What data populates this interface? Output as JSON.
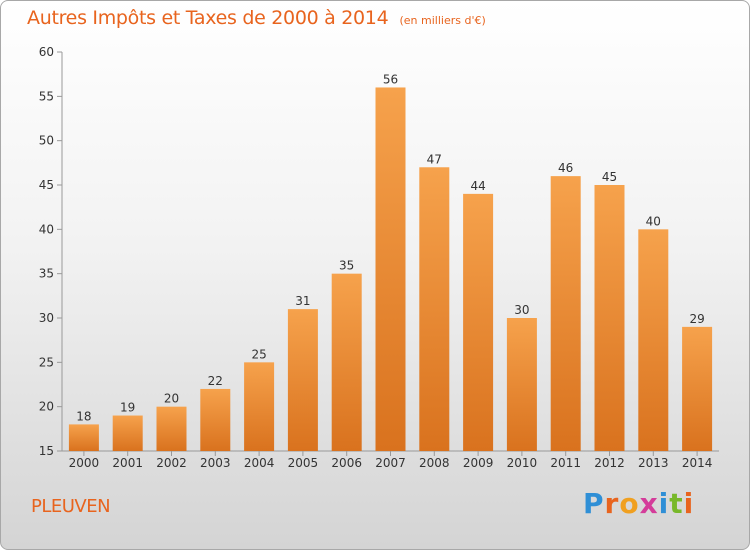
{
  "header": {
    "title": "Autres Impôts et Taxes de 2000 à 2014",
    "unit": "(en milliers d'€)"
  },
  "footer": {
    "commune": "PLEUVEN",
    "logo_letters": [
      "P",
      "r",
      "o",
      "x",
      "i",
      "t",
      "i"
    ],
    "logo_colors": [
      "#2f8fd6",
      "#e8641e",
      "#f0a020",
      "#d43c9a",
      "#2f8fd6",
      "#78b82a",
      "#e8641e"
    ]
  },
  "colors": {
    "bar_light": "#f6a24c",
    "bar_dark": "#d9721e",
    "text": "#333333",
    "title": "#e8641e"
  },
  "chart_data": {
    "type": "bar",
    "categories": [
      "2000",
      "2001",
      "2002",
      "2003",
      "2004",
      "2005",
      "2006",
      "2007",
      "2008",
      "2009",
      "2010",
      "2011",
      "2012",
      "2013",
      "2014"
    ],
    "values": [
      18,
      19,
      20,
      22,
      25,
      31,
      35,
      56,
      47,
      44,
      30,
      46,
      45,
      40,
      29
    ],
    "ylim": [
      15,
      60
    ],
    "yticks": [
      15,
      20,
      25,
      30,
      35,
      40,
      45,
      50,
      55,
      60
    ],
    "grid": false,
    "data_labels": true
  }
}
